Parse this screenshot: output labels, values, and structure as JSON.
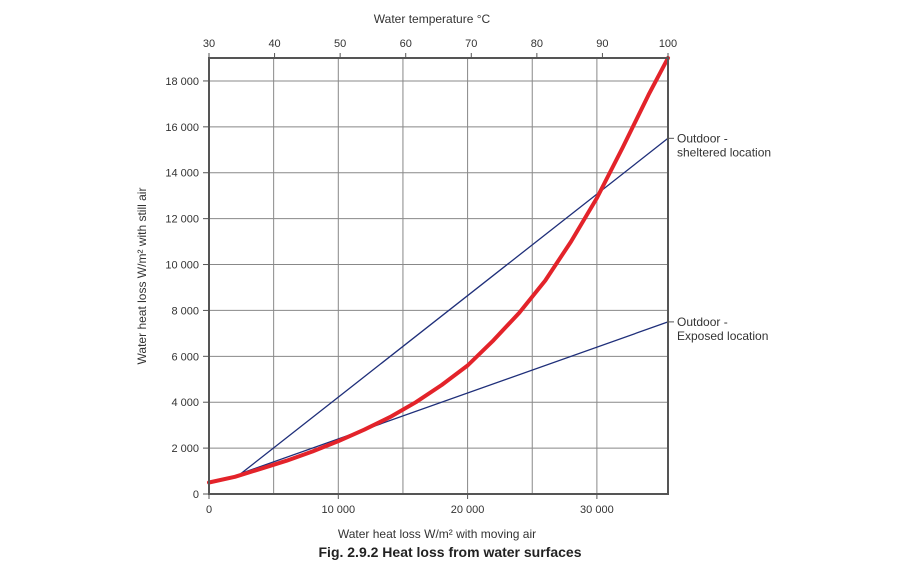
{
  "chart_data": {
    "type": "line",
    "caption": "Fig. 2.9.2 Heat loss from water surfaces",
    "xlabel": "Water heat loss W/m² with moving air",
    "ylabel": "Water heat loss W/m² with still air",
    "top_axis_label": "Water temperature °C",
    "xlim": [
      0,
      35500
    ],
    "ylim": [
      0,
      19000
    ],
    "top_axis_range": [
      30,
      100
    ],
    "grid": true,
    "x_ticks": [
      {
        "value": 0,
        "label": "0"
      },
      {
        "value": 10000,
        "label": "10 000"
      },
      {
        "value": 20000,
        "label": "20 000"
      },
      {
        "value": 30000,
        "label": "30 000"
      }
    ],
    "x_grid": [
      5000,
      10000,
      15000,
      20000,
      25000,
      30000
    ],
    "y_ticks": [
      {
        "value": 0,
        "label": "0"
      },
      {
        "value": 2000,
        "label": "2 000"
      },
      {
        "value": 4000,
        "label": "4 000"
      },
      {
        "value": 6000,
        "label": "6 000"
      },
      {
        "value": 8000,
        "label": "8 000"
      },
      {
        "value": 10000,
        "label": "10 000"
      },
      {
        "value": 12000,
        "label": "12 000"
      },
      {
        "value": 14000,
        "label": "14 000"
      },
      {
        "value": 16000,
        "label": "16 000"
      },
      {
        "value": 18000,
        "label": "18 000"
      }
    ],
    "top_ticks": [
      {
        "value": 30,
        "label": "30"
      },
      {
        "value": 40,
        "label": "40"
      },
      {
        "value": 50,
        "label": "50"
      },
      {
        "value": 60,
        "label": "60"
      },
      {
        "value": 70,
        "label": "70"
      },
      {
        "value": 80,
        "label": "80"
      },
      {
        "value": 90,
        "label": "90"
      },
      {
        "value": 100,
        "label": "100"
      }
    ],
    "series": [
      {
        "id": "temperature-curve",
        "color": "#e3232a",
        "x": [
          0,
          2000,
          4000,
          6000,
          8000,
          10000,
          12000,
          14000,
          16000,
          18000,
          20000,
          22000,
          24000,
          26000,
          28000,
          30000,
          32000,
          34000,
          35500
        ],
        "y": [
          500,
          750,
          1100,
          1450,
          1850,
          2300,
          2800,
          3350,
          4000,
          4750,
          5600,
          6700,
          7900,
          9300,
          11000,
          12900,
          15100,
          17400,
          19000
        ]
      },
      {
        "id": "sheltered-line",
        "name_lines": [
          "Outdoor -",
          "sheltered location"
        ],
        "color": "#1f2f7a",
        "x": [
          2500,
          35500
        ],
        "y": [
          900,
          15500
        ]
      },
      {
        "id": "exposed-line",
        "name_lines": [
          "Outdoor -",
          "Exposed location"
        ],
        "color": "#1f2f7a",
        "x": [
          2500,
          35500
        ],
        "y": [
          900,
          7500
        ]
      }
    ]
  }
}
